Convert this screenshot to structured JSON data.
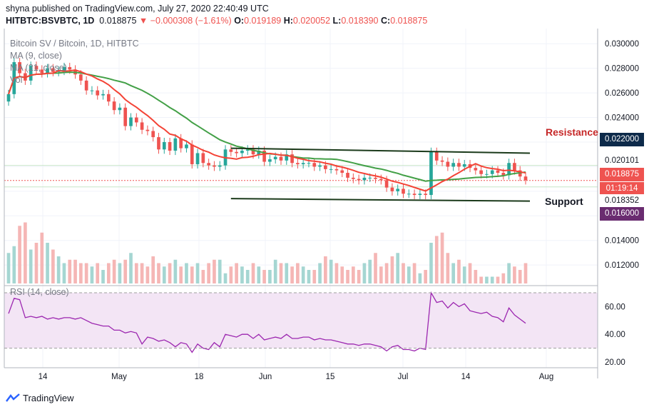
{
  "header": {
    "publisher": "shyna published on TradingView.com, July 27, 2020 22:40:49 UTC",
    "symbol": "HITBTC:BSVBTC, 1D",
    "last": "0.018875",
    "change": "▼ −0.000308 (−1.61%)",
    "o_label": "O:",
    "o_value": "0.019189",
    "h_label": "H:",
    "h_value": "0.020052",
    "l_label": "L:",
    "l_value": "0.018390",
    "c_label": "C:",
    "c_value": "0.018875"
  },
  "legend": {
    "title": "Bitcoin SV / Bitcoin, 1D, HITBTC",
    "ma9": "MA (9, close)",
    "ma21": "MA (21, close)",
    "vol": "Vol",
    "rsi": "RSI (14, close)"
  },
  "annotations": {
    "resistance": "Resistance",
    "support": "Support"
  },
  "price_tags": {
    "resistance": "0.022000",
    "upper_line": "0.020101",
    "last": "0.018875",
    "countdown": "01:19:14",
    "lower_line": "0.018352",
    "support": "0.016000"
  },
  "footer": {
    "brand": "TradingView"
  },
  "colors": {
    "up": "#26a69a",
    "down": "#ef5350",
    "ma9": "#f44336",
    "ma21": "#43a047",
    "channel": "#1b3a1b",
    "rsi_bg": "#f3e5f5",
    "rsi_line": "#9c27b0",
    "resistance_text": "#c62828",
    "resistance_tag": "#0d2a4a",
    "support_tag": "#6a2c70"
  },
  "chart_data": {
    "type": "candlestick",
    "price_axis": {
      "min": 0.0105,
      "max": 0.031,
      "ticks": [
        "0.030000",
        "0.028000",
        "0.026000",
        "0.024000",
        "0.014000",
        "0.012000"
      ]
    },
    "rsi_axis": {
      "min": 20,
      "max": 70,
      "ticks": [
        "60.00",
        "40.00",
        "20.00"
      ],
      "bands": [
        30,
        70
      ]
    },
    "x_ticks": [
      "14",
      "May",
      "18",
      "Jun",
      "15",
      "Jul",
      "14",
      "Aug"
    ],
    "closes": [
      0.0259,
      0.0285,
      0.0276,
      0.027,
      0.0282,
      0.0279,
      0.0276,
      0.028,
      0.0277,
      0.0278,
      0.0281,
      0.0279,
      0.0275,
      0.027,
      0.0262,
      0.0262,
      0.0258,
      0.0259,
      0.0253,
      0.0246,
      0.0248,
      0.0233,
      0.024,
      0.0236,
      0.023,
      0.0229,
      0.0224,
      0.0214,
      0.022,
      0.0213,
      0.0223,
      0.0215,
      0.0218,
      0.0202,
      0.0211,
      0.0203,
      0.0201,
      0.02,
      0.0201,
      0.0214,
      0.0212,
      0.0211,
      0.0213,
      0.0214,
      0.021,
      0.0213,
      0.0204,
      0.0206,
      0.0208,
      0.0205,
      0.021,
      0.0203,
      0.0202,
      0.0203,
      0.0203,
      0.02,
      0.0201,
      0.0198,
      0.0198,
      0.0197,
      0.0195,
      0.0191,
      0.019,
      0.0189,
      0.0191,
      0.0191,
      0.019,
      0.0189,
      0.0183,
      0.018,
      0.0182,
      0.0178,
      0.0178,
      0.0177,
      0.0178,
      0.0177,
      0.0212,
      0.0205,
      0.0204,
      0.02,
      0.0203,
      0.02,
      0.0202,
      0.0199,
      0.0197,
      0.0194,
      0.0194,
      0.0197,
      0.0195,
      0.0193,
      0.0203,
      0.0197,
      0.0192,
      0.0189
    ],
    "volume": [
      0.45,
      0.55,
      0.85,
      0.9,
      0.5,
      0.6,
      0.75,
      0.6,
      0.5,
      0.4,
      0.3,
      0.35,
      0.35,
      0.3,
      0.3,
      0.25,
      0.3,
      0.2,
      0.3,
      0.35,
      0.3,
      0.35,
      0.45,
      0.3,
      0.3,
      0.25,
      0.4,
      0.3,
      0.25,
      0.3,
      0.35,
      0.25,
      0.3,
      0.25,
      0.3,
      0.2,
      0.3,
      0.35,
      0.35,
      0.15,
      0.25,
      0.3,
      0.25,
      0.2,
      0.3,
      0.25,
      0.2,
      0.2,
      0.35,
      0.3,
      0.3,
      0.25,
      0.3,
      0.25,
      0.2,
      0.2,
      0.3,
      0.4,
      0.35,
      0.3,
      0.25,
      0.2,
      0.25,
      0.2,
      0.3,
      0.35,
      0.45,
      0.25,
      0.3,
      0.4,
      0.45,
      0.3,
      0.25,
      0.3,
      0.15,
      0.2,
      0.6,
      0.7,
      0.75,
      0.45,
      0.3,
      0.35,
      0.25,
      0.3,
      0.2,
      0.1,
      0.1,
      0.1,
      0.1,
      0.15,
      0.3,
      0.25,
      0.2,
      0.3
    ],
    "rsi": [
      55,
      66,
      65,
      52,
      53,
      52,
      53,
      51,
      52,
      51,
      52,
      52,
      51,
      52,
      50,
      48,
      47,
      46,
      46,
      43,
      43,
      41,
      42,
      41,
      33,
      38,
      37,
      35,
      36,
      34,
      31,
      34,
      33,
      27,
      33,
      30,
      29,
      34,
      31,
      40,
      39,
      38,
      40,
      40,
      37,
      40,
      36,
      37,
      38,
      37,
      40,
      37,
      37,
      38,
      38,
      36,
      37,
      36,
      36,
      35,
      34,
      33,
      33,
      32,
      33,
      33,
      32,
      31,
      28,
      31,
      32,
      29,
      29,
      28,
      30,
      29,
      70,
      63,
      64,
      59,
      63,
      60,
      62,
      57,
      56,
      55,
      56,
      53,
      52,
      49,
      59,
      54,
      51,
      48
    ]
  }
}
